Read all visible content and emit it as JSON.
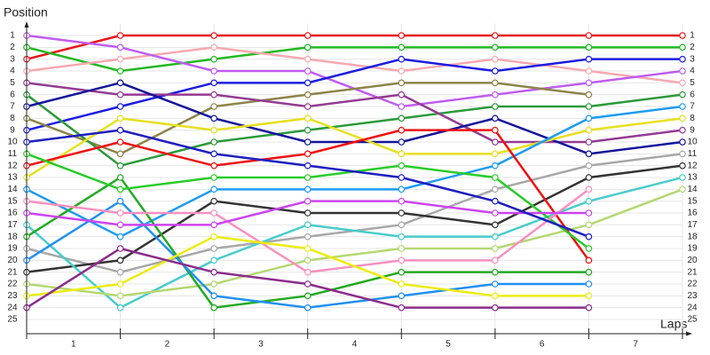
{
  "chart_data": {
    "type": "line",
    "y_axis_label": "Position",
    "x_axis_label": "Laps",
    "x": [
      0,
      1,
      2,
      3,
      4,
      5,
      6,
      7
    ],
    "xlim": [
      0,
      7
    ],
    "xticks": [
      {
        "value": 0.5,
        "label": "1"
      },
      {
        "value": 1.5,
        "label": "2"
      },
      {
        "value": 2.5,
        "label": "3"
      },
      {
        "value": 3.5,
        "label": "4"
      },
      {
        "value": 4.5,
        "label": "5"
      },
      {
        "value": 5.5,
        "label": "6"
      },
      {
        "value": 6.5,
        "label": "7"
      }
    ],
    "ylim": [
      26,
      0
    ],
    "yticks": [
      1,
      2,
      3,
      4,
      5,
      6,
      7,
      8,
      9,
      10,
      11,
      12,
      13,
      14,
      15,
      16,
      17,
      18,
      19,
      20,
      21,
      22,
      23,
      24,
      25
    ],
    "grid": true,
    "series": [
      {
        "color": "#e8141a",
        "values": [
          3,
          1,
          1,
          1,
          1,
          1,
          1,
          1
        ]
      },
      {
        "color": "#22b822",
        "values": [
          2,
          4,
          3,
          2,
          2,
          2,
          2,
          2
        ]
      },
      {
        "color": "#f7a8b0",
        "values": [
          4,
          3,
          2,
          3,
          4,
          3,
          4,
          5
        ]
      },
      {
        "color": "#c05cf0",
        "values": [
          1,
          2,
          4,
          4,
          7,
          6,
          5,
          4
        ]
      },
      {
        "color": "#1c1ce0",
        "values": [
          9,
          7,
          5,
          5,
          3,
          4,
          3,
          3
        ]
      },
      {
        "color": "#8c8448",
        "values": [
          8,
          11,
          7,
          6,
          5,
          5,
          6,
          null
        ]
      },
      {
        "color": "#2a9a3a",
        "values": [
          6,
          12,
          10,
          9,
          8,
          7,
          7,
          6
        ]
      },
      {
        "color": "#943a94",
        "values": [
          5,
          6,
          6,
          7,
          6,
          10,
          10,
          9
        ]
      },
      {
        "color": "#14149a",
        "values": [
          7,
          5,
          8,
          10,
          10,
          8,
          11,
          10
        ]
      },
      {
        "color": "#e6e020",
        "values": [
          13,
          8,
          9,
          8,
          11,
          11,
          9,
          8
        ]
      },
      {
        "color": "#1e9cf0",
        "values": [
          14,
          18,
          14,
          14,
          14,
          12,
          8,
          7
        ]
      },
      {
        "color": "#a8a8a8",
        "values": [
          19,
          21,
          19,
          18,
          17,
          14,
          12,
          11
        ]
      },
      {
        "color": "#333333",
        "values": [
          21,
          20,
          15,
          16,
          16,
          17,
          13,
          12
        ]
      },
      {
        "color": "#48cccc",
        "values": [
          17,
          24,
          20,
          17,
          18,
          18,
          15,
          13
        ]
      },
      {
        "color": "#b4d870",
        "values": [
          22,
          23,
          22,
          20,
          19,
          19,
          17,
          14
        ]
      },
      {
        "color": "#ee1010",
        "values": [
          12,
          10,
          12,
          11,
          9,
          9,
          20,
          null
        ]
      },
      {
        "color": "#22aa22",
        "values": [
          18,
          13,
          24,
          23,
          21,
          21,
          21,
          null
        ]
      },
      {
        "color": "#28cc28",
        "values": [
          11,
          14,
          13,
          13,
          12,
          13,
          19,
          null
        ]
      },
      {
        "color": "#2090f0",
        "values": [
          20,
          15,
          23,
          24,
          23,
          22,
          22,
          null
        ]
      },
      {
        "color": "#f890c0",
        "values": [
          15,
          16,
          16,
          21,
          20,
          20,
          14,
          null
        ]
      },
      {
        "color": "#cc44ee",
        "values": [
          16,
          17,
          17,
          15,
          15,
          16,
          16,
          null
        ]
      },
      {
        "color": "#ecec10",
        "values": [
          23,
          22,
          18,
          19,
          22,
          23,
          23,
          null
        ]
      },
      {
        "color": "#8c2c8c",
        "values": [
          24,
          19,
          21,
          22,
          24,
          24,
          24,
          null
        ]
      },
      {
        "color": "#1e1ec0",
        "values": [
          10,
          9,
          11,
          12,
          13,
          15,
          18,
          null
        ]
      }
    ]
  }
}
